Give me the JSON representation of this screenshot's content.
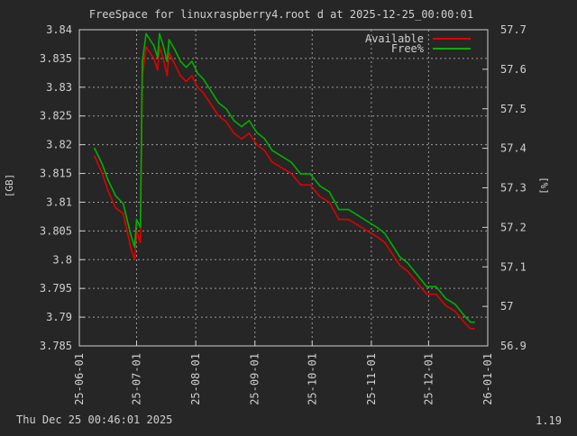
{
  "chart_data": {
    "type": "line",
    "title": "FreeSpace for linuxraspberry4.root d at 2025-12-25_00:00:01",
    "ylabel": "[GB]",
    "y2label": "[%]",
    "ylim": [
      3.785,
      3.84
    ],
    "y2lim": [
      56.9,
      57.7
    ],
    "y_ticks": [
      "3.785",
      "3.79",
      "3.795",
      "3.8",
      "3.805",
      "3.81",
      "3.815",
      "3.82",
      "3.825",
      "3.83",
      "3.835",
      "3.84"
    ],
    "y2_ticks": [
      "56.9",
      "57",
      "57.1",
      "57.2",
      "57.3",
      "57.4",
      "57.5",
      "57.6",
      "57.7"
    ],
    "xlim": [
      "2025-06-01",
      "2026-01-01"
    ],
    "x_ticks": [
      "25-06-01",
      "25-07-01",
      "25-08-01",
      "25-09-01",
      "25-10-01",
      "25-11-01",
      "25-12-01",
      "26-01-01"
    ],
    "grid": true,
    "legend_position": "top-right",
    "series": [
      {
        "name": "Available",
        "color": "#e00000",
        "axis": "left",
        "points": [
          [
            "2025-06-09",
            3.818
          ],
          [
            "2025-06-13",
            3.815
          ],
          [
            "2025-06-16",
            3.812
          ],
          [
            "2025-06-20",
            3.809
          ],
          [
            "2025-06-24",
            3.808
          ],
          [
            "2025-06-28",
            3.802
          ],
          [
            "2025-06-30",
            3.8
          ],
          [
            "2025-07-01",
            3.805
          ],
          [
            "2025-07-03",
            3.803
          ],
          [
            "2025-07-04",
            3.832
          ],
          [
            "2025-07-06",
            3.837
          ],
          [
            "2025-07-08",
            3.836
          ],
          [
            "2025-07-10",
            3.835
          ],
          [
            "2025-07-12",
            3.833
          ],
          [
            "2025-07-13",
            3.837
          ],
          [
            "2025-07-15",
            3.835
          ],
          [
            "2025-07-17",
            3.832
          ],
          [
            "2025-07-18",
            3.836
          ],
          [
            "2025-07-21",
            3.834
          ],
          [
            "2025-07-24",
            3.832
          ],
          [
            "2025-07-27",
            3.831
          ],
          [
            "2025-07-30",
            3.832
          ],
          [
            "2025-08-02",
            3.83
          ],
          [
            "2025-08-05",
            3.829
          ],
          [
            "2025-08-09",
            3.827
          ],
          [
            "2025-08-13",
            3.825
          ],
          [
            "2025-08-17",
            3.824
          ],
          [
            "2025-08-21",
            3.822
          ],
          [
            "2025-08-25",
            3.821
          ],
          [
            "2025-08-29",
            3.822
          ],
          [
            "2025-09-02",
            3.82
          ],
          [
            "2025-09-06",
            3.819
          ],
          [
            "2025-09-10",
            3.817
          ],
          [
            "2025-09-15",
            3.816
          ],
          [
            "2025-09-20",
            3.815
          ],
          [
            "2025-09-25",
            3.813
          ],
          [
            "2025-09-30",
            3.813
          ],
          [
            "2025-10-05",
            3.811
          ],
          [
            "2025-10-10",
            3.81
          ],
          [
            "2025-10-15",
            3.807
          ],
          [
            "2025-10-20",
            3.807
          ],
          [
            "2025-10-25",
            3.806
          ],
          [
            "2025-10-30",
            3.805
          ],
          [
            "2025-11-04",
            3.804
          ],
          [
            "2025-11-08",
            3.803
          ],
          [
            "2025-11-12",
            3.801
          ],
          [
            "2025-11-16",
            3.799
          ],
          [
            "2025-11-20",
            3.798
          ],
          [
            "2025-11-25",
            3.796
          ],
          [
            "2025-11-30",
            3.794
          ],
          [
            "2025-12-05",
            3.794
          ],
          [
            "2025-12-10",
            3.792
          ],
          [
            "2025-12-15",
            3.791
          ],
          [
            "2025-12-20",
            3.789
          ],
          [
            "2025-12-23",
            3.788
          ],
          [
            "2025-12-25",
            3.788
          ]
        ]
      },
      {
        "name": "Free%",
        "color": "#00b000",
        "axis": "right",
        "points": [
          [
            "2025-06-09",
            57.4
          ],
          [
            "2025-06-13",
            57.36
          ],
          [
            "2025-06-16",
            57.32
          ],
          [
            "2025-06-20",
            57.28
          ],
          [
            "2025-06-24",
            57.26
          ],
          [
            "2025-06-28",
            57.18
          ],
          [
            "2025-06-30",
            57.15
          ],
          [
            "2025-07-01",
            57.22
          ],
          [
            "2025-07-03",
            57.2
          ],
          [
            "2025-07-04",
            57.62
          ],
          [
            "2025-07-06",
            57.69
          ],
          [
            "2025-07-08",
            57.675
          ],
          [
            "2025-07-10",
            57.66
          ],
          [
            "2025-07-12",
            57.63
          ],
          [
            "2025-07-13",
            57.69
          ],
          [
            "2025-07-15",
            57.66
          ],
          [
            "2025-07-17",
            57.62
          ],
          [
            "2025-07-18",
            57.675
          ],
          [
            "2025-07-21",
            57.65
          ],
          [
            "2025-07-24",
            57.62
          ],
          [
            "2025-07-27",
            57.605
          ],
          [
            "2025-07-30",
            57.62
          ],
          [
            "2025-08-02",
            57.59
          ],
          [
            "2025-08-05",
            57.575
          ],
          [
            "2025-08-09",
            57.545
          ],
          [
            "2025-08-13",
            57.515
          ],
          [
            "2025-08-17",
            57.5
          ],
          [
            "2025-08-21",
            57.47
          ],
          [
            "2025-08-25",
            57.455
          ],
          [
            "2025-08-29",
            57.47
          ],
          [
            "2025-09-02",
            57.44
          ],
          [
            "2025-09-06",
            57.425
          ],
          [
            "2025-09-10",
            57.395
          ],
          [
            "2025-09-15",
            57.38
          ],
          [
            "2025-09-20",
            57.365
          ],
          [
            "2025-09-25",
            57.335
          ],
          [
            "2025-09-30",
            57.335
          ],
          [
            "2025-10-05",
            57.305
          ],
          [
            "2025-10-10",
            57.29
          ],
          [
            "2025-10-15",
            57.245
          ],
          [
            "2025-10-20",
            57.245
          ],
          [
            "2025-10-25",
            57.23
          ],
          [
            "2025-10-30",
            57.215
          ],
          [
            "2025-11-04",
            57.2
          ],
          [
            "2025-11-08",
            57.185
          ],
          [
            "2025-11-12",
            57.155
          ],
          [
            "2025-11-16",
            57.125
          ],
          [
            "2025-11-20",
            57.11
          ],
          [
            "2025-11-25",
            57.08
          ],
          [
            "2025-11-30",
            57.05
          ],
          [
            "2025-12-05",
            57.05
          ],
          [
            "2025-12-10",
            57.02
          ],
          [
            "2025-12-15",
            57.005
          ],
          [
            "2025-12-20",
            56.975
          ],
          [
            "2025-12-23",
            56.96
          ],
          [
            "2025-12-25",
            56.96
          ]
        ]
      }
    ]
  },
  "footer": {
    "timestamp": "Thu Dec 25 00:46:01 2025",
    "version": "1.19"
  }
}
